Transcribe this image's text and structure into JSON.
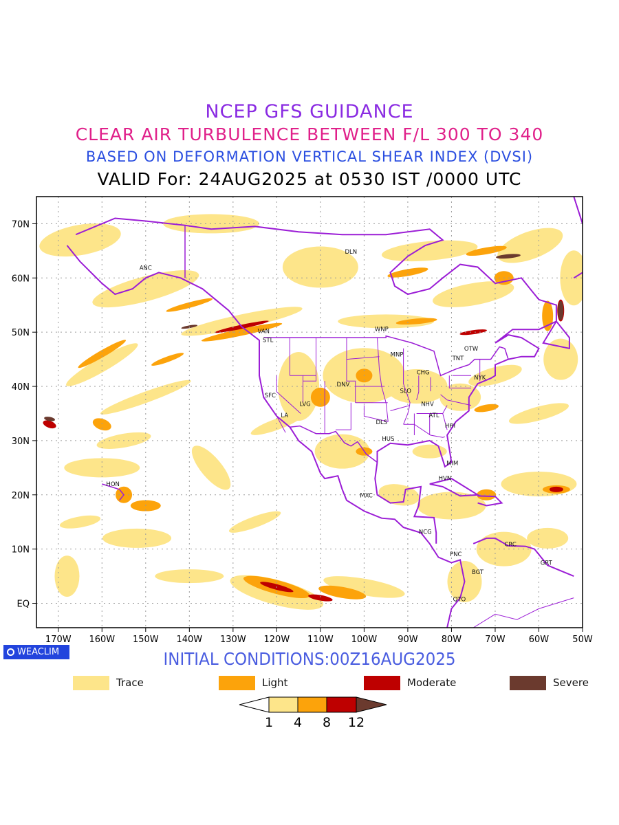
{
  "header": {
    "line1": "NCEP GFS GUIDANCE",
    "line2": "CLEAR AIR TURBULENCE BETWEEN F/L 300 TO 340",
    "line3": "BASED ON DEFORMATION VERTICAL SHEAR INDEX (DVSI)",
    "line4": "VALID For: 24AUG2025 at 0530 IST /0000 UTC"
  },
  "colors": {
    "line1": "#8a2be2",
    "line2": "#e0208a",
    "line3": "#2a4ee0",
    "line4": "#000000",
    "boundary": "#9b1dd6",
    "trace": "#fde58a",
    "light": "#fca30b",
    "moderate": "#be0000",
    "severe": "#6b3a2e",
    "logo_bg": "#2244dd",
    "init": "#4a5de0"
  },
  "map": {
    "lat_labels": [
      "70N",
      "60N",
      "50N",
      "40N",
      "30N",
      "20N",
      "10N",
      "EQ"
    ],
    "lon_labels": [
      "170W",
      "160W",
      "150W",
      "140W",
      "130W",
      "120W",
      "110W",
      "100W",
      "90W",
      "80W",
      "70W",
      "60W",
      "50W"
    ],
    "stations": [
      {
        "name": "DLN",
        "lon": -103,
        "lat": 64.5
      },
      {
        "name": "ANC",
        "lon": -150,
        "lat": 61.5
      },
      {
        "name": "VAN",
        "lon": -123,
        "lat": 49.8
      },
      {
        "name": "STL",
        "lon": -122,
        "lat": 48.2
      },
      {
        "name": "WNP",
        "lon": -96,
        "lat": 50.2
      },
      {
        "name": "MNP",
        "lon": -92.5,
        "lat": 45.5
      },
      {
        "name": "OTW",
        "lon": -75.5,
        "lat": 46.6
      },
      {
        "name": "TNT",
        "lon": -78.5,
        "lat": 44.8
      },
      {
        "name": "CHG",
        "lon": -86.5,
        "lat": 42.2
      },
      {
        "name": "NYK",
        "lon": -73.5,
        "lat": 41.3
      },
      {
        "name": "DNV",
        "lon": -104.8,
        "lat": 40.0
      },
      {
        "name": "SFC",
        "lon": -121.5,
        "lat": 38.0
      },
      {
        "name": "SLO",
        "lon": -90.5,
        "lat": 38.8
      },
      {
        "name": "LVG",
        "lon": -113.5,
        "lat": 36.4
      },
      {
        "name": "NHV",
        "lon": -85.5,
        "lat": 36.4
      },
      {
        "name": "LA",
        "lon": -118.2,
        "lat": 34.3
      },
      {
        "name": "ATL",
        "lon": -84.0,
        "lat": 34.3
      },
      {
        "name": "DLS",
        "lon": -96.0,
        "lat": 33.0
      },
      {
        "name": "HHI",
        "lon": -80.3,
        "lat": 32.4
      },
      {
        "name": "HUS",
        "lon": -94.5,
        "lat": 30.0
      },
      {
        "name": "MIM",
        "lon": -79.8,
        "lat": 25.5
      },
      {
        "name": "HVN",
        "lon": -81.5,
        "lat": 22.7
      },
      {
        "name": "HON",
        "lon": -157.5,
        "lat": 21.6
      },
      {
        "name": "MXC",
        "lon": -99.5,
        "lat": 19.5
      },
      {
        "name": "NCG",
        "lon": -86.0,
        "lat": 12.8
      },
      {
        "name": "CRC",
        "lon": -66.5,
        "lat": 10.5
      },
      {
        "name": "PNC",
        "lon": -79.0,
        "lat": 8.7
      },
      {
        "name": "GRT",
        "lon": -58.3,
        "lat": 7.1
      },
      {
        "name": "BGT",
        "lon": -74.0,
        "lat": 5.4
      },
      {
        "name": "QTO",
        "lon": -78.2,
        "lat": 0.4
      }
    ]
  },
  "footer": {
    "logo": "WEACLIM",
    "init": "INITIAL CONDITIONS:00Z16AUG2025"
  },
  "legend": [
    {
      "label": "Trace",
      "color": "#fde58a"
    },
    {
      "label": "Light",
      "color": "#fca30b"
    },
    {
      "label": "Moderate",
      "color": "#be0000"
    },
    {
      "label": "Severe",
      "color": "#6b3a2e"
    }
  ],
  "colorbar": {
    "ticks": [
      "1",
      "4",
      "8",
      "12"
    ]
  }
}
